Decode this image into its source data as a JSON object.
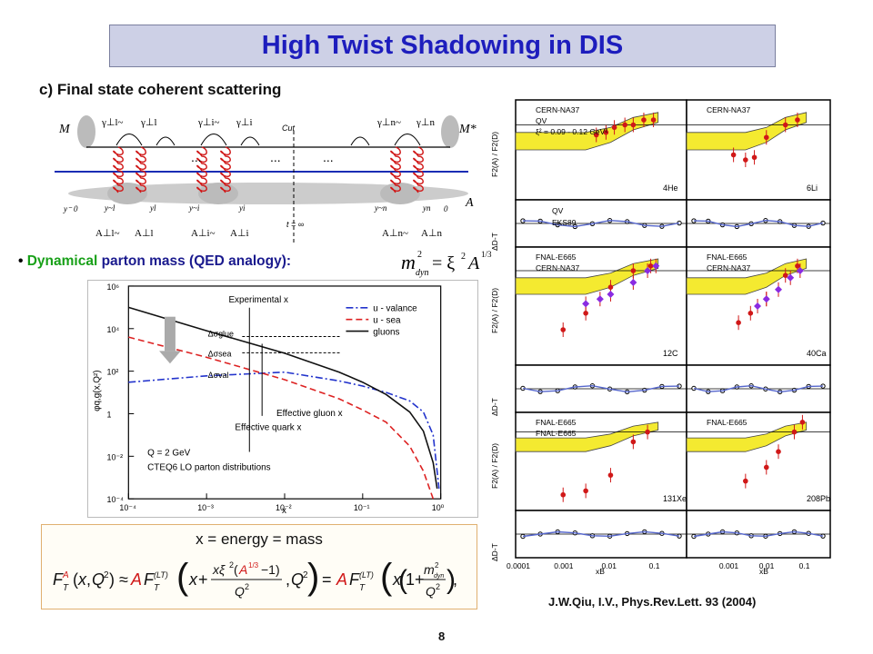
{
  "slide": {
    "title": "High Twist Shadowing in DIS",
    "subtitle": "c) Final state coherent scattering",
    "bullet_highlight": "Dynamical",
    "bullet_rest": " parton mass (QED analogy):",
    "citation": "J.W.Qiu, I.V., Phys.Rev.Lett. 93 (2004)",
    "page_number": "8"
  },
  "feynman": {
    "label_M": "M",
    "label_Mstar": "M*",
    "label_A": "A",
    "label_cut": "Cut",
    "label_t": "t = ∞",
    "label_y0_left": "y⁻ 0",
    "label_y0_right": "0",
    "label_dots": "...",
    "bottom_labels": [
      "A⊥l~",
      "A⊥l",
      "A⊥i~",
      "A⊥i",
      "A⊥n~",
      "A⊥n"
    ],
    "top_labels": [
      "γ⊥l~",
      "γ⊥l",
      "γ⊥i~",
      "γ⊥i",
      "γ⊥n~",
      "γ⊥n"
    ],
    "y_labels": [
      "y~l",
      "yl",
      "y~i",
      "yi",
      "y~n",
      "yn"
    ]
  },
  "mass_formula": {
    "lhs": "m",
    "lhs_sub": "dyn",
    "lhs_sup": "2",
    "rhs": "= ξ",
    "rhs_sup1": "2",
    "rhs_A": "A",
    "rhs_sup2": "1/3"
  },
  "chart_data": [
    {
      "type": "line",
      "title": "",
      "xlabel": "x",
      "ylabel": "φq,g(x,Q²)",
      "xscale": "log",
      "yscale": "log",
      "xlim": [
        0.0001,
        1
      ],
      "ylim": [
        0.0001,
        1000000
      ],
      "x_ticks": [
        "10⁻⁴",
        "10⁻³",
        "10⁻²",
        "10⁻¹",
        "10⁰"
      ],
      "y_ticks": [
        "10⁶",
        "10⁴",
        "10²",
        "1",
        "10⁻²",
        "10⁻⁴"
      ],
      "legend_position": "top-right",
      "series": [
        {
          "name": "u - valance",
          "color": "#2233cc",
          "style": "dashdot",
          "x": [
            0.0001,
            0.001,
            0.01,
            0.05,
            0.1,
            0.2,
            0.4,
            0.6,
            0.8,
            0.95
          ],
          "y": [
            30,
            60,
            90,
            35,
            20,
            10,
            4,
            1.2,
            0.1,
            0.0003
          ]
        },
        {
          "name": "u - sea",
          "color": "#dd2222",
          "style": "dashed",
          "x": [
            0.0001,
            0.001,
            0.01,
            0.05,
            0.1,
            0.2,
            0.4,
            0.6,
            0.8
          ],
          "y": [
            4000,
            450,
            40,
            5,
            1.5,
            0.4,
            0.03,
            0.002,
            0.0001
          ]
        },
        {
          "name": "gluons",
          "color": "#111111",
          "style": "solid",
          "x": [
            0.0001,
            0.001,
            0.01,
            0.05,
            0.1,
            0.2,
            0.4,
            0.6,
            0.8,
            0.9
          ],
          "y": [
            100000,
            8000,
            700,
            90,
            30,
            8,
            1.2,
            0.15,
            0.005,
            0.0003
          ]
        }
      ],
      "annotations": [
        "Experimental x",
        "Δσglue",
        "Δσsea",
        "Δσval",
        "Effective gluon x",
        "Effective quark x",
        "Q = 2 GeV",
        "CTEQ6 LO parton distributions"
      ]
    },
    {
      "type": "scatter",
      "title": "",
      "panels": [
        {
          "nucleus": "4He",
          "ylabel": "F2(A) / F2(D)",
          "legend": [
            "CERN-NA37",
            "QV",
            "ξ² = 0.09 - 0.12 GeV²"
          ],
          "ylim": [
            0.7,
            1.1
          ],
          "series": [
            {
              "name": "CERN-NA37",
              "x": [
                0.005,
                0.008,
                0.012,
                0.02,
                0.03,
                0.05,
                0.08
              ],
              "y": [
                0.96,
                0.97,
                0.99,
                1.0,
                1.0,
                1.02,
                1.02
              ]
            }
          ]
        },
        {
          "nucleus": "6Li",
          "ylabel": "",
          "legend": [
            "CERN-NA37"
          ],
          "ylim": [
            0.7,
            1.1
          ],
          "series": [
            {
              "name": "CERN-NA37",
              "x": [
                0.0015,
                0.003,
                0.005,
                0.01,
                0.03,
                0.06
              ],
              "y": [
                0.88,
                0.86,
                0.87,
                0.95,
                1.0,
                1.02
              ]
            }
          ]
        },
        {
          "nucleus": "",
          "ylabel": "ΔD-T",
          "legend": [
            "QV",
            "EKS89"
          ],
          "ylim": [
            -0.15,
            0.15
          ]
        },
        {
          "nucleus": "",
          "ylabel": "",
          "legend": [],
          "ylim": [
            -0.15,
            0.15
          ]
        },
        {
          "nucleus": "12C",
          "ylabel": "F2(A) / F2(D)",
          "legend": [
            "FNAL-E665",
            "CERN-NA37"
          ],
          "ylim": [
            0.6,
            1.1
          ],
          "series": [
            {
              "name": "FNAL-E665",
              "x": [
                0.001,
                0.003,
                0.01,
                0.03,
                0.07
              ],
              "y": [
                0.75,
                0.82,
                0.93,
                1.0,
                1.02
              ]
            },
            {
              "name": "CERN-NA37",
              "x": [
                0.003,
                0.006,
                0.01,
                0.03,
                0.06,
                0.09
              ],
              "y": [
                0.86,
                0.88,
                0.9,
                0.95,
                1.0,
                1.02
              ]
            }
          ]
        },
        {
          "nucleus": "40Ca",
          "ylabel": "",
          "legend": [
            "FNAL-E665",
            "CERN-NA37"
          ],
          "ylim": [
            0.6,
            1.1
          ],
          "series": [
            {
              "name": "FNAL-E665",
              "x": [
                0.002,
                0.004,
                0.01,
                0.03,
                0.06
              ],
              "y": [
                0.78,
                0.82,
                0.88,
                0.98,
                1.02
              ]
            },
            {
              "name": "CERN-NA37",
              "x": [
                0.006,
                0.01,
                0.02,
                0.04,
                0.07
              ],
              "y": [
                0.85,
                0.88,
                0.92,
                0.97,
                1.0
              ]
            }
          ]
        },
        {
          "nucleus": "",
          "ylabel": "ΔD-T",
          "legend": [],
          "ylim": [
            -0.15,
            0.15
          ]
        },
        {
          "nucleus": "",
          "ylabel": "",
          "legend": [],
          "ylim": [
            -0.15,
            0.15
          ]
        },
        {
          "nucleus": "131Xe",
          "ylabel": "F2(A) / F2(D)",
          "legend": [
            "FNAL-E665",
            "FNAL-E665"
          ],
          "ylim": [
            0.6,
            1.1
          ],
          "series": [
            {
              "name": "FNAL-E665",
              "x": [
                0.001,
                0.003,
                0.01,
                0.03,
                0.06
              ],
              "y": [
                0.68,
                0.7,
                0.78,
                0.95,
                1.0
              ]
            }
          ]
        },
        {
          "nucleus": "208Pb",
          "ylabel": "",
          "legend": [
            "FNAL-E665"
          ],
          "ylim": [
            0.6,
            1.1
          ],
          "series": [
            {
              "name": "FNAL-E665",
              "x": [
                0.003,
                0.01,
                0.02,
                0.05,
                0.08
              ],
              "y": [
                0.75,
                0.82,
                0.9,
                1.0,
                1.05
              ]
            }
          ]
        },
        {
          "nucleus": "",
          "ylabel": "ΔD-T",
          "legend": [],
          "ylim": [
            -0.2,
            0.2
          ]
        },
        {
          "nucleus": "",
          "ylabel": "",
          "legend": [],
          "ylim": [
            -0.2,
            0.2
          ]
        }
      ],
      "xlabel": "xB",
      "x_ticks": [
        "0.0001",
        "0.001",
        "0.01",
        "0.1"
      ]
    }
  ],
  "eq_box": {
    "title": "x = energy = mass"
  }
}
